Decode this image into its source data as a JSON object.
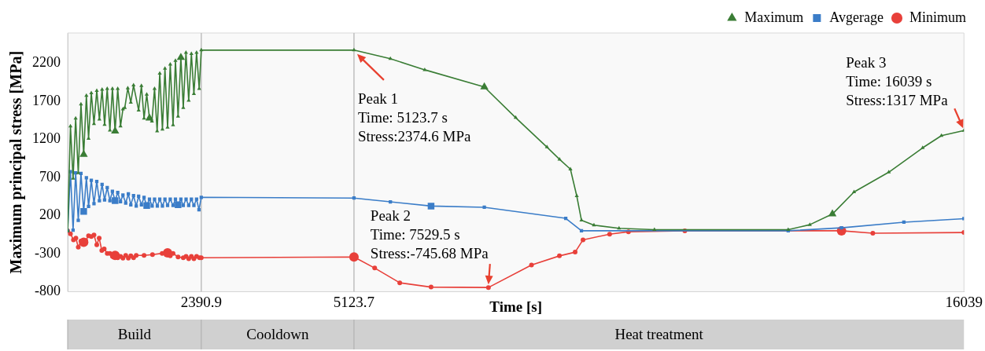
{
  "chart_data": {
    "type": "line",
    "xlabel": "Time [s]",
    "ylabel": "Maximum principal stress [MPa]",
    "xlim": [
      0,
      16039
    ],
    "xticks": [
      2390.9,
      5123.7,
      16039
    ],
    "ylim": [
      -800,
      2600
    ],
    "yticks": [
      -800,
      -300,
      200,
      700,
      1200,
      1700,
      2200
    ],
    "legend": "top right",
    "line_style": "solid",
    "series": [
      {
        "name": "Maximum",
        "color": "#3a7d35",
        "marker": "triangle",
        "x": [
          0,
          50,
          97,
          143,
          190,
          238,
          287,
          335,
          374,
          423,
          471,
          521,
          568,
          616,
          661,
          708,
          756,
          801,
          849,
          896,
          946,
          989,
          1022,
          1076,
          1130,
          1179,
          1270,
          1320,
          1367,
          1415,
          1464,
          1508,
          1555,
          1601,
          1648,
          1696,
          1741,
          1788,
          1836,
          1886,
          1929,
          1976,
          2026,
          2069,
          2117,
          2166,
          2214,
          2259,
          2307,
          2354,
          2390.9,
          5123.7,
          5775,
          6390,
          7456,
          8017,
          8577,
          8802,
          8997,
          9110,
          9194,
          9418,
          9867,
          10500,
          12894,
          13281,
          13685,
          14072,
          14694,
          15300,
          15636,
          16039
        ],
        "values": [
          0,
          1374,
          687,
          1477,
          761,
          1664,
          1003,
          1777,
          1213,
          1810,
          1406,
          1842,
          1464,
          1858,
          1396,
          1868,
          1319,
          1868,
          1309,
          1868,
          1374,
          1600,
          1616,
          1874,
          1687,
          1913,
          1584,
          1906,
          1477,
          1793,
          1480,
          1438,
          1868,
          1309,
          2068,
          1332,
          2132,
          1358,
          2187,
          1390,
          2235,
          1503,
          2277,
          1616,
          2342,
          1713,
          2326,
          1800,
          2342,
          1868,
          2374.6,
          2374.6,
          2261,
          2116,
          1890,
          1487,
          1100,
          939,
          809,
          458,
          139,
          74,
          32,
          15,
          15,
          80,
          220,
          510,
          770,
          1090,
          1250,
          1317
        ]
      },
      {
        "name": "Avgerage",
        "color": "#3b7dc8",
        "marker": "square",
        "x": [
          0,
          50,
          97,
          143,
          190,
          238,
          287,
          335,
          374,
          423,
          471,
          521,
          568,
          616,
          661,
          708,
          756,
          801,
          849,
          896,
          946,
          989,
          1039,
          1086,
          1130,
          1179,
          1227,
          1270,
          1320,
          1367,
          1415,
          1464,
          1512,
          1555,
          1605,
          1648,
          1696,
          1741,
          1788,
          1836,
          1886,
          1929,
          1976,
          2026,
          2069,
          2119,
          2166,
          2214,
          2259,
          2307,
          2350,
          2390.9,
          5123.7,
          5775,
          6503,
          7456,
          8913,
          9194,
          12894,
          13848,
          14964,
          16039
        ],
        "values": [
          0,
          777,
          9,
          761,
          138,
          754,
          254,
          696,
          319,
          664,
          357,
          648,
          396,
          609,
          406,
          567,
          396,
          519,
          396,
          503,
          383,
          470,
          364,
          486,
          341,
          461,
          325,
          454,
          341,
          438,
          332,
          415,
          325,
          415,
          325,
          415,
          325,
          415,
          332,
          415,
          332,
          415,
          341,
          415,
          332,
          415,
          332,
          415,
          332,
          415,
          277,
          440,
          430,
          380,
          325,
          309,
          164,
          0,
          0,
          39,
          113,
          159
        ]
      },
      {
        "name": "Minimum",
        "color": "#e8403a",
        "marker": "circle",
        "x": [
          0,
          50,
          104,
          147,
          190,
          238,
          287,
          324,
          374,
          423,
          471,
          521,
          564,
          611,
          654,
          708,
          756,
          801,
          849,
          896,
          946,
          989,
          1039,
          1086,
          1130,
          1179,
          1227,
          1367,
          1518,
          1691,
          1788,
          1836,
          1886,
          1976,
          2069,
          2119,
          2166,
          2214,
          2259,
          2307,
          2361,
          2390.9,
          5123.7,
          5494,
          5943,
          6503,
          7529.5,
          8300,
          8800,
          9081,
          9222,
          9698,
          10035,
          11044,
          13848,
          14408,
          16039
        ],
        "values": [
          0,
          -39,
          -119,
          -97,
          -216,
          -136,
          -152,
          -129,
          -65,
          -77,
          -55,
          -184,
          -97,
          -258,
          -239,
          -297,
          -297,
          -336,
          -323,
          -355,
          -336,
          -361,
          -323,
          -361,
          -329,
          -355,
          -323,
          -323,
          -313,
          -297,
          -290,
          -329,
          -297,
          -345,
          -355,
          -336,
          -368,
          -336,
          -368,
          -336,
          -355,
          -355,
          -345,
          -490,
          -684,
          -740,
          -745.68,
          -450,
          -330,
          -281,
          -119,
          -45,
          -13,
          0,
          0,
          -32,
          -23
        ]
      }
    ],
    "ref_lines": [
      {
        "axis": "x",
        "value": 2390.9,
        "color": "#bfbfbf"
      },
      {
        "axis": "x",
        "value": 5123.7,
        "color": "#bfbfbf"
      }
    ],
    "bands": [
      {
        "axis": "x",
        "from": 0,
        "to": 2390.9,
        "label": "Build",
        "color": "#d0d0d0"
      },
      {
        "axis": "x",
        "from": 2390.9,
        "to": 5123.7,
        "label": "Cooldown",
        "color": "#d0d0d0"
      },
      {
        "axis": "x",
        "from": 5123.7,
        "to": 16039,
        "label": "Heat treatment",
        "color": "#d0d0d0"
      }
    ],
    "annotations": [
      {
        "text": "Peak 1\nTime: 5123.7 s\nStress:2374.6 MPa",
        "x": 5123.7,
        "y": 2374.6
      },
      {
        "text": "Peak 2\nTime: 7529.5 s\nStress:-745.68 MPa",
        "x": 7529.5,
        "y": -745.68
      },
      {
        "text": "Peak 3\nTime: 16039 s\nStress:1317 MPa",
        "x": 16039,
        "y": 1317
      }
    ]
  }
}
